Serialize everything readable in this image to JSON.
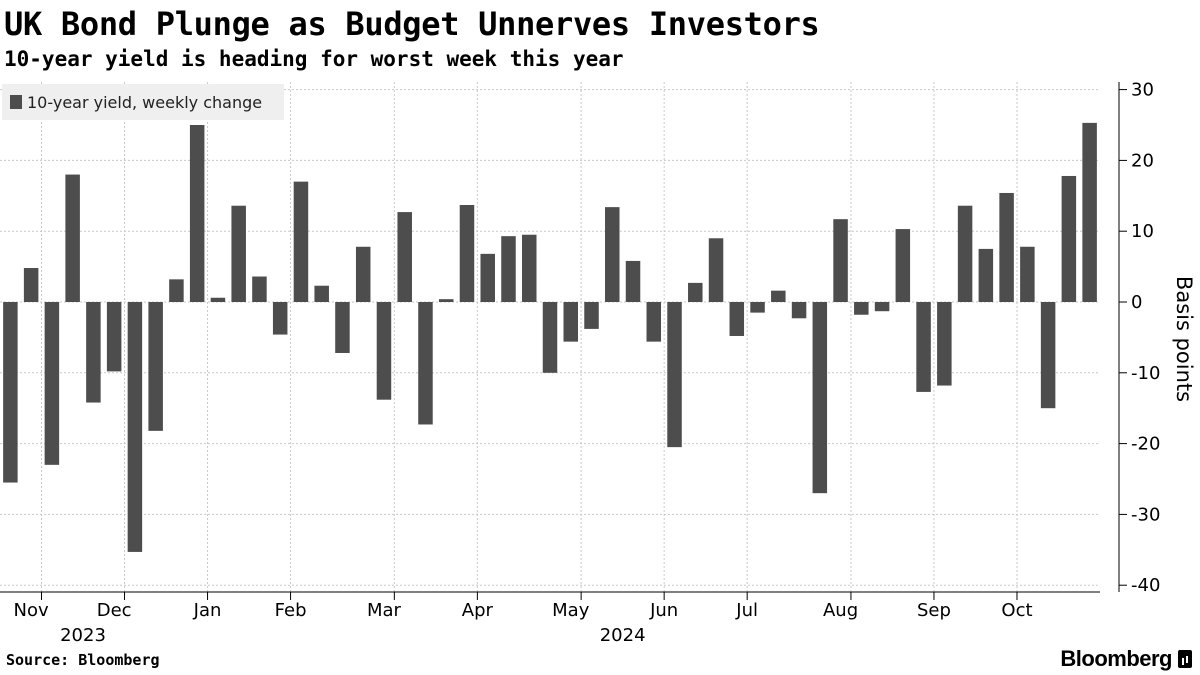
{
  "header": {
    "title": "UK Bond Plunge as Budget Unnerves Investors",
    "subtitle": "10-year yield is heading for worst week this year"
  },
  "footer": {
    "source": "Source: Bloomberg",
    "brand": "Bloomberg"
  },
  "colors": {
    "bar": "#4d4d4d",
    "grid": "#c8c8c8",
    "legend_bg": "#efefef"
  },
  "chart_data": {
    "type": "bar",
    "title": "UK Bond Plunge as Budget Unnerves Investors",
    "subtitle": "10-year yield is heading for worst week this year",
    "series": [
      {
        "name": "10-year yield, weekly change",
        "values": [
          -25.5,
          4.8,
          -23.0,
          18.0,
          -14.2,
          -9.8,
          -35.3,
          -18.2,
          3.2,
          25.0,
          0.6,
          13.6,
          3.6,
          -4.6,
          17.0,
          2.3,
          -7.2,
          7.8,
          -13.8,
          12.7,
          -17.3,
          0.4,
          13.7,
          6.8,
          9.3,
          9.5,
          -10.0,
          -5.6,
          -3.8,
          13.4,
          5.8,
          -5.6,
          -20.5,
          2.7,
          9.0,
          -4.8,
          -1.5,
          1.6,
          -2.3,
          -27.0,
          11.7,
          -1.8,
          -1.3,
          10.3,
          -12.7,
          -11.8,
          13.6,
          7.5,
          15.4,
          7.8,
          -15.0,
          17.8,
          25.3
        ]
      }
    ],
    "x_ticks": [
      "Nov",
      "Dec",
      "Jan",
      "Feb",
      "Mar",
      "Apr",
      "May",
      "Jun",
      "Jul",
      "Aug",
      "Sep",
      "Oct"
    ],
    "x_tick_week_index": [
      2,
      6,
      10,
      14,
      19,
      23,
      28,
      32,
      36,
      41,
      45,
      49
    ],
    "x_label_week_index": [
      1.5,
      5.5,
      10,
      14,
      18.5,
      23,
      27.5,
      32,
      36,
      40.5,
      45,
      49
    ],
    "years": [
      "2023",
      "2024"
    ],
    "year_week_index": [
      4,
      30
    ],
    "ylabel": "Basis points",
    "y_ticks": [
      30,
      20,
      10,
      0,
      -10,
      -20,
      -30,
      -40
    ],
    "ylim": [
      -40,
      30
    ],
    "xlabel": "",
    "legend": "top-left",
    "grid": true
  }
}
